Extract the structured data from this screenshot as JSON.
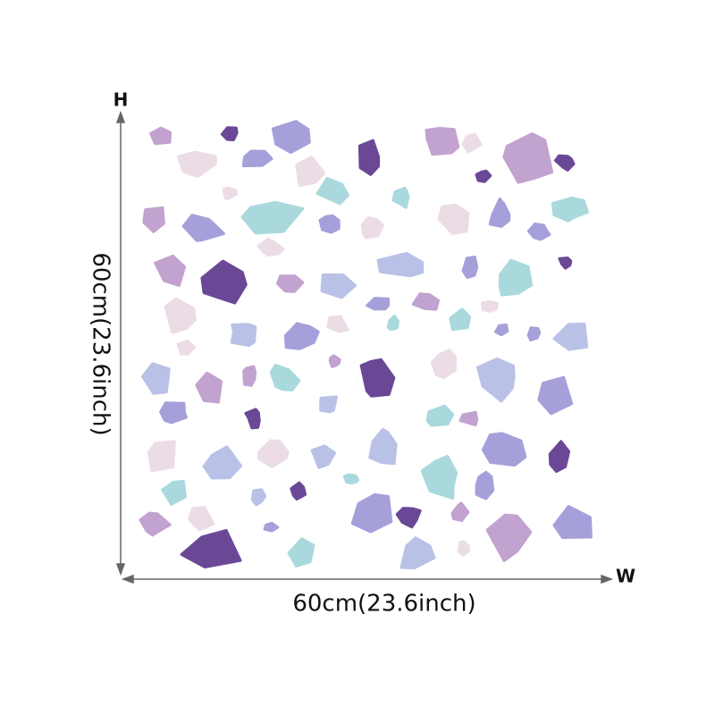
{
  "labels": {
    "height_axis": "H",
    "width_axis": "W",
    "width": "60cm(23.6inch)",
    "height": "60cm(23.6inch)"
  }
}
